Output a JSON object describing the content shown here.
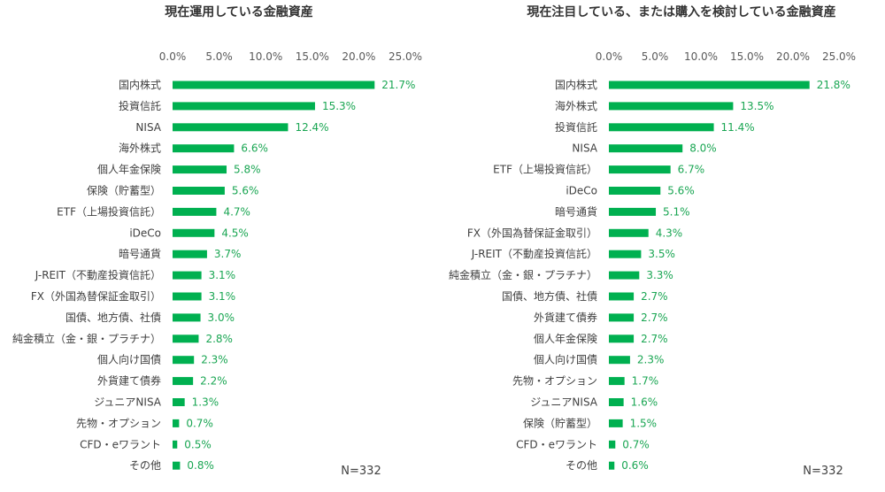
{
  "colors": {
    "bar": "#00b050",
    "label": "#1aa653",
    "text": "#404040"
  },
  "chart_data": [
    {
      "type": "bar",
      "orientation": "horizontal",
      "title": "現在運用している金融資産",
      "note": "N=332",
      "xlim": [
        0,
        25
      ],
      "ticks": [
        "0.0%",
        "5.0%",
        "10.0%",
        "15.0%",
        "20.0%",
        "25.0%"
      ],
      "grid": false,
      "categories": [
        "国内株式",
        "投資信託",
        "NISA",
        "海外株式",
        "個人年金保険",
        "保険（貯蓄型）",
        "ETF（上場投資信託）",
        "iDeCo",
        "暗号通貨",
        "J-REIT（不動産投資信託）",
        "FX（外国為替保証金取引）",
        "国債、地方債、社債",
        "純金積立（金・銀・プラチナ）",
        "個人向け国債",
        "外貨建て債券",
        "ジュニアNISA",
        "先物・オプション",
        "CFD・eワラント",
        "その他"
      ],
      "values": [
        21.7,
        15.3,
        12.4,
        6.6,
        5.8,
        5.6,
        4.7,
        4.5,
        3.7,
        3.1,
        3.1,
        3.0,
        2.8,
        2.3,
        2.2,
        1.3,
        0.7,
        0.5,
        0.8
      ],
      "value_labels": [
        "21.7%",
        "15.3%",
        "12.4%",
        "6.6%",
        "5.8%",
        "5.6%",
        "4.7%",
        "4.5%",
        "3.7%",
        "3.1%",
        "3.1%",
        "3.0%",
        "2.8%",
        "2.3%",
        "2.2%",
        "1.3%",
        "0.7%",
        "0.5%",
        "0.8%"
      ]
    },
    {
      "type": "bar",
      "orientation": "horizontal",
      "title": "現在注目している、または購入を検討している金融資産",
      "note": "N=332",
      "xlim": [
        0,
        25
      ],
      "ticks": [
        "0.0%",
        "5.0%",
        "10.0%",
        "15.0%",
        "20.0%",
        "25.0%"
      ],
      "grid": false,
      "categories": [
        "国内株式",
        "海外株式",
        "投資信託",
        "NISA",
        "ETF（上場投資信託）",
        "iDeCo",
        "暗号通貨",
        "FX（外国為替保証金取引）",
        "J-REIT（不動産投資信託）",
        "純金積立（金・銀・プラチナ）",
        "国債、地方債、社債",
        "外貨建て債券",
        "個人年金保険",
        "個人向け国債",
        "先物・オプション",
        "ジュニアNISA",
        "保険（貯蓄型）",
        "CFD・eワラント",
        "その他"
      ],
      "values": [
        21.8,
        13.5,
        11.4,
        8.0,
        6.7,
        5.6,
        5.1,
        4.3,
        3.5,
        3.3,
        2.7,
        2.7,
        2.7,
        2.3,
        1.7,
        1.6,
        1.5,
        0.7,
        0.6
      ],
      "value_labels": [
        "21.8%",
        "13.5%",
        "11.4%",
        "8.0%",
        "6.7%",
        "5.6%",
        "5.1%",
        "4.3%",
        "3.5%",
        "3.3%",
        "2.7%",
        "2.7%",
        "2.7%",
        "2.3%",
        "1.7%",
        "1.6%",
        "1.5%",
        "0.7%",
        "0.6%"
      ]
    }
  ]
}
